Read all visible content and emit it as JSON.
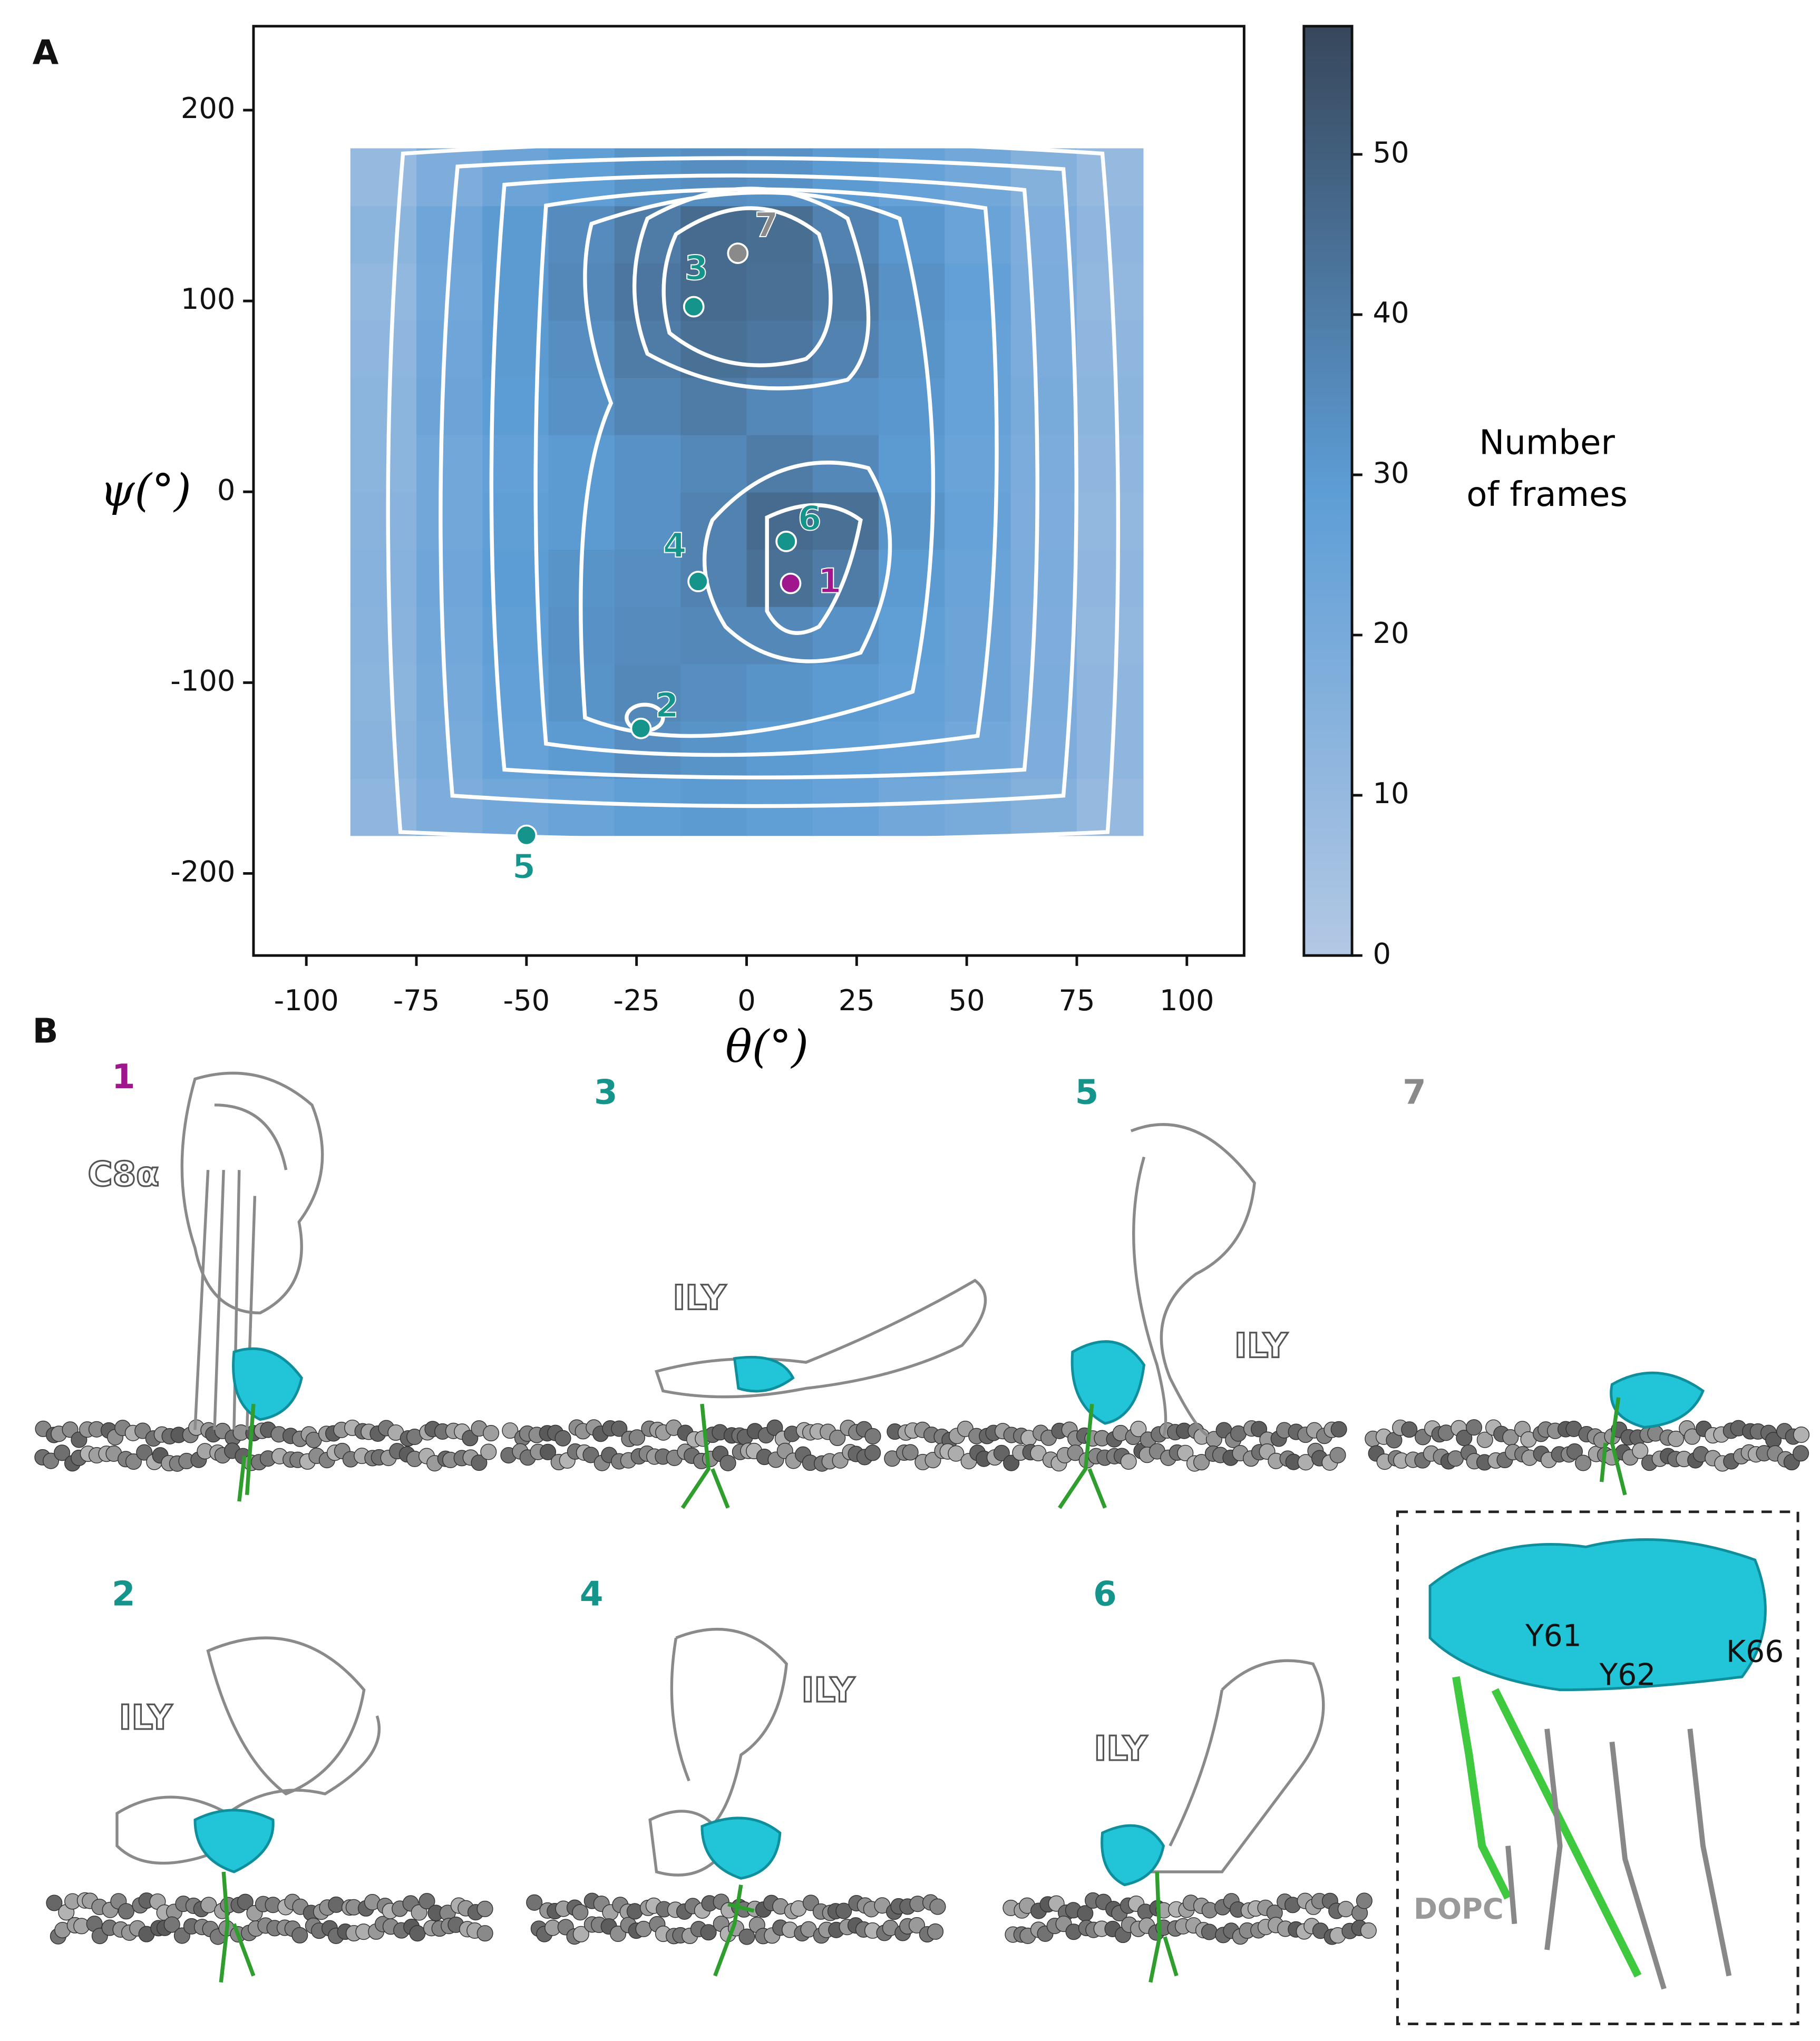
{
  "chart_data": {
    "type": "heatmap",
    "panel_label": "A",
    "xlabel": "θ(°)",
    "ylabel": "ψ(°)",
    "xlim": [
      -112,
      113
    ],
    "ylim": [
      -243,
      244
    ],
    "xticks": [
      -100,
      -75,
      -50,
      -25,
      0,
      25,
      50,
      75,
      100
    ],
    "yticks": [
      -200,
      -100,
      0,
      100,
      200
    ],
    "x_bins": [
      -90,
      -75,
      -60,
      -45,
      -30,
      -15,
      0,
      15,
      30,
      45,
      60,
      75,
      90
    ],
    "y_bins": [
      -180,
      -150,
      -120,
      -90,
      -60,
      -30,
      0,
      30,
      60,
      90,
      120,
      150,
      180
    ],
    "values": [
      [
        12,
        18,
        22,
        25,
        28,
        30,
        28,
        26,
        22,
        20,
        16,
        10
      ],
      [
        14,
        20,
        26,
        30,
        34,
        32,
        30,
        28,
        26,
        22,
        18,
        12
      ],
      [
        13,
        21,
        27,
        32,
        36,
        34,
        32,
        30,
        27,
        24,
        19,
        12
      ],
      [
        14,
        22,
        28,
        33,
        35,
        36,
        36,
        33,
        28,
        24,
        18,
        11
      ],
      [
        15,
        23,
        29,
        32,
        34,
        38,
        44,
        40,
        30,
        25,
        19,
        12
      ],
      [
        14,
        22,
        28,
        30,
        33,
        38,
        46,
        44,
        32,
        26,
        18,
        11
      ],
      [
        13,
        22,
        27,
        30,
        33,
        36,
        40,
        36,
        30,
        25,
        19,
        12
      ],
      [
        13,
        24,
        29,
        33,
        37,
        40,
        36,
        33,
        31,
        26,
        20,
        13
      ],
      [
        12,
        23,
        30,
        34,
        40,
        44,
        42,
        38,
        32,
        26,
        19,
        12
      ],
      [
        11,
        22,
        30,
        36,
        42,
        46,
        44,
        40,
        33,
        27,
        19,
        11
      ],
      [
        13,
        23,
        30,
        35,
        40,
        46,
        45,
        38,
        31,
        25,
        18,
        12
      ],
      [
        10,
        18,
        24,
        28,
        32,
        34,
        33,
        30,
        26,
        22,
        16,
        10
      ]
    ],
    "colormap": [
      "#b3c8e4",
      "#5d9dd6",
      "#37475b"
    ],
    "clim": [
      0,
      58
    ],
    "colorbar_ticks": [
      0,
      10,
      20,
      30,
      40,
      50
    ],
    "colorbar_label": [
      "Number",
      "of frames"
    ],
    "points": [
      {
        "label": "1",
        "theta": 10,
        "psi": -48,
        "color": "#a0168c"
      },
      {
        "label": "2",
        "theta": -24,
        "psi": -124,
        "color": "#15948c"
      },
      {
        "label": "3",
        "theta": -12,
        "psi": 97,
        "color": "#15948c"
      },
      {
        "label": "4",
        "theta": -11,
        "psi": -47,
        "color": "#15948c"
      },
      {
        "label": "5",
        "theta": -50,
        "psi": -180,
        "color": "#15948c"
      },
      {
        "label": "6",
        "theta": 9,
        "psi": -26,
        "color": "#15948c"
      },
      {
        "label": "7",
        "theta": -2,
        "psi": 125,
        "color": "#8a8a8a"
      }
    ]
  },
  "panel_b": {
    "panel_label": "B",
    "frames": [
      "1",
      "3",
      "5",
      "7",
      "2",
      "4",
      "6"
    ],
    "labels": [
      "C8α",
      "ILY",
      "ILY",
      "ILY",
      "ILY",
      "ILY"
    ],
    "inset": [
      "Y61",
      "Y62",
      "K66",
      "DOPC"
    ]
  }
}
